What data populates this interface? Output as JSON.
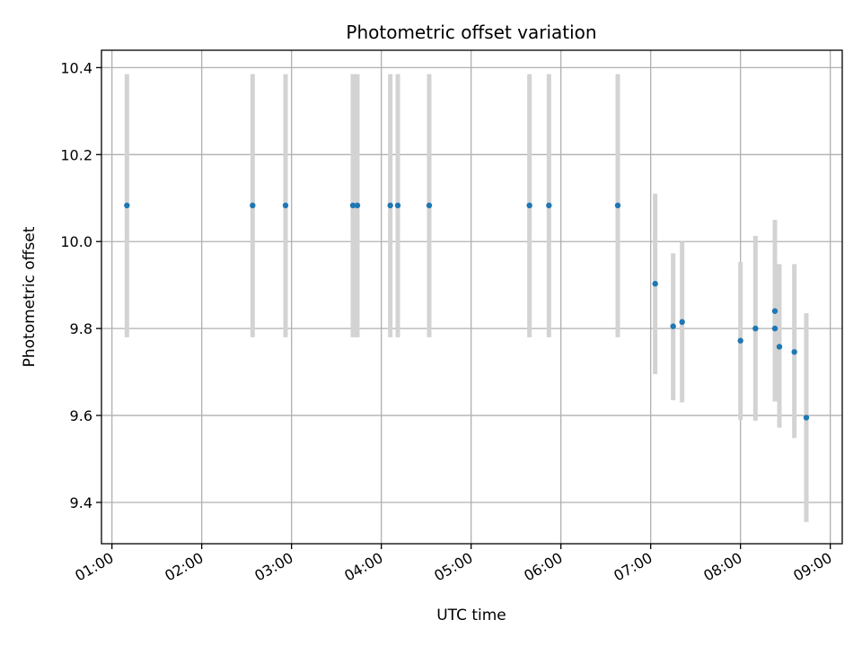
{
  "chart_data": {
    "type": "scatter",
    "title": "Photometric offset variation",
    "xlabel": "UTC time",
    "ylabel": "Photometric offset",
    "xlim": [
      "00:53",
      "09:08"
    ],
    "ylim": [
      9.305,
      10.44
    ],
    "x_ticks": [
      "01:00",
      "02:00",
      "03:00",
      "04:00",
      "05:00",
      "06:00",
      "07:00",
      "08:00",
      "09:00"
    ],
    "y_ticks": [
      9.4,
      9.6,
      9.8,
      10.0,
      10.2,
      10.4
    ],
    "grid": true,
    "colors": {
      "point": "#1f77b4",
      "errorbar": "#d3d3d3",
      "grid": "#b0b0b0"
    },
    "points": [
      {
        "time": "01:10",
        "offset": 10.083,
        "low": 9.78,
        "high": 10.385
      },
      {
        "time": "02:34",
        "offset": 10.083,
        "low": 9.78,
        "high": 10.385
      },
      {
        "time": "02:56",
        "offset": 10.083,
        "low": 9.78,
        "high": 10.385
      },
      {
        "time": "03:41",
        "offset": 10.083,
        "low": 9.78,
        "high": 10.385
      },
      {
        "time": "03:44",
        "offset": 10.083,
        "low": 9.78,
        "high": 10.385
      },
      {
        "time": "04:06",
        "offset": 10.083,
        "low": 9.78,
        "high": 10.385
      },
      {
        "time": "04:11",
        "offset": 10.083,
        "low": 9.78,
        "high": 10.385
      },
      {
        "time": "04:32",
        "offset": 10.083,
        "low": 9.78,
        "high": 10.385
      },
      {
        "time": "05:39",
        "offset": 10.083,
        "low": 9.78,
        "high": 10.385
      },
      {
        "time": "05:52",
        "offset": 10.083,
        "low": 9.78,
        "high": 10.385
      },
      {
        "time": "06:38",
        "offset": 10.083,
        "low": 9.78,
        "high": 10.385
      },
      {
        "time": "07:03",
        "offset": 9.903,
        "low": 9.695,
        "high": 10.11
      },
      {
        "time": "07:15",
        "offset": 9.805,
        "low": 9.635,
        "high": 9.973
      },
      {
        "time": "07:21",
        "offset": 9.815,
        "low": 9.63,
        "high": 10.0
      },
      {
        "time": "08:00",
        "offset": 9.772,
        "low": 9.59,
        "high": 9.953
      },
      {
        "time": "08:10",
        "offset": 9.8,
        "low": 9.588,
        "high": 10.013
      },
      {
        "time": "08:23",
        "offset": 9.84,
        "low": 9.632,
        "high": 10.05
      },
      {
        "time": "08:23",
        "offset": 9.8,
        "low": 9.64,
        "high": 9.965
      },
      {
        "time": "08:26",
        "offset": 9.758,
        "low": 9.572,
        "high": 9.948
      },
      {
        "time": "08:36",
        "offset": 9.746,
        "low": 9.548,
        "high": 9.948
      },
      {
        "time": "08:44",
        "offset": 9.595,
        "low": 9.355,
        "high": 9.835
      }
    ]
  }
}
